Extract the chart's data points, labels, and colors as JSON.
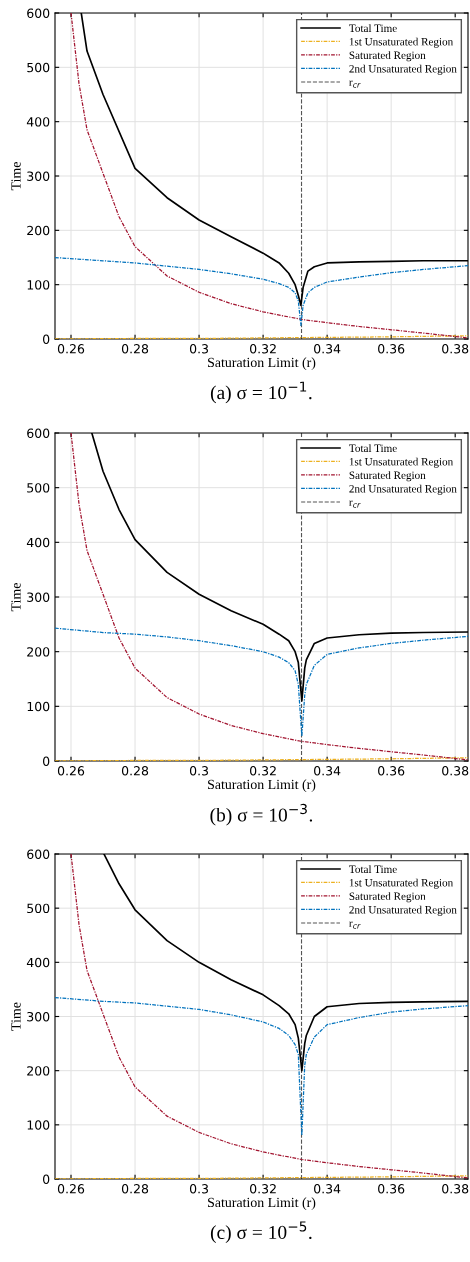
{
  "chart_data": [
    {
      "type": "line",
      "title": "(a) σ = 10$^{−1}$.",
      "xlabel": "Saturation Limit (r)",
      "ylabel": "Time",
      "xlim": [
        0.255,
        0.384
      ],
      "ylim": [
        0,
        600
      ],
      "xticks": [
        0.26,
        0.28,
        0.3,
        0.32,
        0.34,
        0.36,
        0.38
      ],
      "yticks": [
        0,
        100,
        200,
        300,
        400,
        500,
        600
      ],
      "grid": true,
      "legend": "top right",
      "series": [
        {
          "name": "Total Time",
          "color": "#000000",
          "line_style": "solid",
          "x": [
            0.2632,
            0.265,
            0.27,
            0.28,
            0.29,
            0.3,
            0.31,
            0.32,
            0.325,
            0.328,
            0.33,
            0.331,
            0.3318,
            0.3325,
            0.334,
            0.336,
            0.34,
            0.35,
            0.36,
            0.37,
            0.384
          ],
          "values": [
            600,
            530,
            450,
            314,
            260,
            219,
            188,
            158,
            140,
            121,
            100,
            80,
            62,
            95,
            125,
            133,
            140,
            142,
            143,
            144,
            144
          ]
        },
        {
          "name": "1st Unsaturated Region",
          "color": "#edb120",
          "line_style": "dotted",
          "x": [
            0.255,
            0.28,
            0.3,
            0.32,
            0.34,
            0.36,
            0.384
          ],
          "values": [
            0,
            1,
            1,
            2,
            3,
            4,
            6
          ]
        },
        {
          "name": "Saturated Region",
          "color": "#a2142f",
          "line_style": "dotted",
          "x": [
            0.26,
            0.2625,
            0.265,
            0.27,
            0.275,
            0.28,
            0.29,
            0.3,
            0.31,
            0.32,
            0.332,
            0.34,
            0.35,
            0.36,
            0.37,
            0.384
          ],
          "values": [
            600,
            470,
            385,
            305,
            225,
            170,
            116,
            86,
            65,
            50,
            36,
            30,
            23,
            17,
            11,
            2
          ]
        },
        {
          "name": "2nd Unsaturated Region",
          "color": "#0072bd",
          "line_style": "dotted",
          "x": [
            0.255,
            0.27,
            0.28,
            0.29,
            0.3,
            0.31,
            0.32,
            0.325,
            0.328,
            0.33,
            0.331,
            0.3318,
            0.3325,
            0.334,
            0.336,
            0.34,
            0.35,
            0.36,
            0.37,
            0.384
          ],
          "values": [
            150,
            144,
            140,
            134,
            128,
            120,
            110,
            102,
            95,
            85,
            70,
            25,
            62,
            85,
            95,
            105,
            114,
            122,
            128,
            135
          ]
        }
      ],
      "ref_lines": [
        {
          "axis": "x",
          "value": 0.332,
          "label": "r$_{cr}$",
          "color": "#555555",
          "line_style": "dashed"
        }
      ]
    },
    {
      "type": "line",
      "title": "(b) σ = 10$^{−3}$.",
      "xlabel": "Saturation Limit (r)",
      "ylabel": "Time",
      "xlim": [
        0.255,
        0.384
      ],
      "ylim": [
        0,
        600
      ],
      "xticks": [
        0.26,
        0.28,
        0.3,
        0.32,
        0.34,
        0.36,
        0.38
      ],
      "yticks": [
        0,
        100,
        200,
        300,
        400,
        500,
        600
      ],
      "grid": true,
      "legend": "top right",
      "series": [
        {
          "name": "Total Time",
          "color": "#000000",
          "line_style": "solid",
          "x": [
            0.2665,
            0.27,
            0.275,
            0.28,
            0.29,
            0.3,
            0.31,
            0.32,
            0.325,
            0.328,
            0.33,
            0.331,
            0.3321,
            0.333,
            0.3335,
            0.336,
            0.34,
            0.35,
            0.36,
            0.37,
            0.384
          ],
          "values": [
            600,
            530,
            460,
            405,
            345,
            305,
            275,
            250,
            232,
            220,
            200,
            180,
            110,
            170,
            185,
            215,
            225,
            231,
            234,
            235,
            236
          ]
        },
        {
          "name": "1st Unsaturated Region",
          "color": "#edb120",
          "line_style": "dotted",
          "x": [
            0.255,
            0.28,
            0.3,
            0.32,
            0.34,
            0.36,
            0.384
          ],
          "values": [
            0,
            1,
            1,
            2,
            3,
            4,
            6
          ]
        },
        {
          "name": "Saturated Region",
          "color": "#a2142f",
          "line_style": "dotted",
          "x": [
            0.26,
            0.2625,
            0.265,
            0.27,
            0.275,
            0.28,
            0.29,
            0.3,
            0.31,
            0.32,
            0.332,
            0.34,
            0.35,
            0.36,
            0.37,
            0.384
          ],
          "values": [
            600,
            470,
            385,
            305,
            225,
            170,
            116,
            86,
            65,
            50,
            36,
            30,
            23,
            17,
            11,
            2
          ]
        },
        {
          "name": "2nd Unsaturated Region",
          "color": "#0072bd",
          "line_style": "dotted",
          "x": [
            0.255,
            0.27,
            0.28,
            0.29,
            0.3,
            0.31,
            0.32,
            0.325,
            0.328,
            0.33,
            0.331,
            0.3321,
            0.333,
            0.3335,
            0.336,
            0.34,
            0.35,
            0.36,
            0.37,
            0.384
          ],
          "values": [
            243,
            235,
            232,
            227,
            220,
            211,
            200,
            190,
            180,
            165,
            140,
            45,
            120,
            140,
            175,
            195,
            207,
            215,
            221,
            228
          ]
        }
      ],
      "ref_lines": [
        {
          "axis": "x",
          "value": 0.332,
          "label": "r$_{cr}$",
          "color": "#555555",
          "line_style": "dashed"
        }
      ]
    },
    {
      "type": "line",
      "title": "(c) σ = 10$^{−5}$.",
      "xlabel": "Saturation Limit (r)",
      "ylabel": "Time",
      "xlim": [
        0.255,
        0.384
      ],
      "ylim": [
        0,
        600
      ],
      "xticks": [
        0.26,
        0.28,
        0.3,
        0.32,
        0.34,
        0.36,
        0.38
      ],
      "yticks": [
        0,
        100,
        200,
        300,
        400,
        500,
        600
      ],
      "grid": true,
      "legend": "top right",
      "series": [
        {
          "name": "Total Time",
          "color": "#000000",
          "line_style": "solid",
          "x": [
            0.2703,
            0.275,
            0.28,
            0.29,
            0.3,
            0.31,
            0.32,
            0.325,
            0.328,
            0.33,
            0.331,
            0.3321,
            0.333,
            0.3335,
            0.336,
            0.34,
            0.35,
            0.36,
            0.37,
            0.384
          ],
          "values": [
            600,
            545,
            497,
            440,
            400,
            368,
            340,
            320,
            305,
            285,
            260,
            200,
            250,
            265,
            300,
            318,
            324,
            326,
            327,
            328
          ]
        },
        {
          "name": "1st Unsaturated Region",
          "color": "#edb120",
          "line_style": "dotted",
          "x": [
            0.255,
            0.28,
            0.3,
            0.32,
            0.34,
            0.36,
            0.384
          ],
          "values": [
            0,
            1,
            1,
            2,
            3,
            4,
            6
          ]
        },
        {
          "name": "Saturated Region",
          "color": "#a2142f",
          "line_style": "dotted",
          "x": [
            0.26,
            0.2625,
            0.265,
            0.27,
            0.275,
            0.28,
            0.29,
            0.3,
            0.31,
            0.32,
            0.332,
            0.34,
            0.35,
            0.36,
            0.37,
            0.384
          ],
          "values": [
            600,
            470,
            385,
            305,
            225,
            170,
            116,
            86,
            65,
            50,
            36,
            30,
            23,
            17,
            11,
            2
          ]
        },
        {
          "name": "2nd Unsaturated Region",
          "color": "#0072bd",
          "line_style": "dotted",
          "x": [
            0.255,
            0.27,
            0.28,
            0.29,
            0.3,
            0.31,
            0.32,
            0.325,
            0.328,
            0.33,
            0.331,
            0.3321,
            0.333,
            0.3335,
            0.336,
            0.34,
            0.35,
            0.36,
            0.37,
            0.384
          ],
          "values": [
            335,
            328,
            325,
            319,
            313,
            303,
            290,
            278,
            265,
            248,
            230,
            80,
            210,
            230,
            262,
            285,
            298,
            308,
            314,
            320
          ]
        }
      ],
      "ref_lines": [
        {
          "axis": "x",
          "value": 0.332,
          "label": "r$_{cr}$",
          "color": "#555555",
          "line_style": "dashed"
        }
      ]
    }
  ]
}
